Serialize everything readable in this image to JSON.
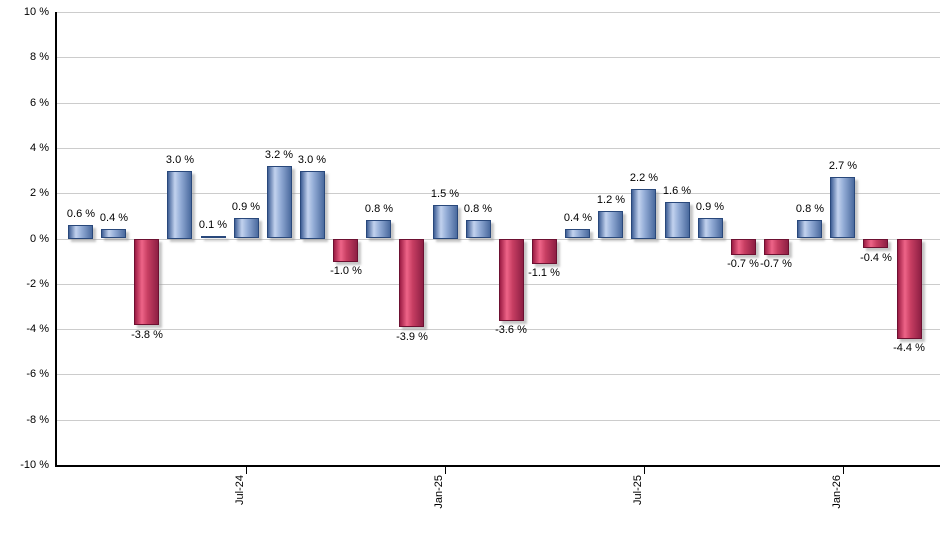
{
  "chart_data": {
    "type": "bar",
    "title": "",
    "xlabel": "",
    "ylabel": "",
    "unit_suffix": " %",
    "ylim": [
      -10,
      10
    ],
    "grid": true,
    "legend": false,
    "y_ticks_percent": [
      10,
      8,
      6,
      4,
      2,
      0,
      -2,
      -4,
      -6,
      -8,
      -10
    ],
    "values": [
      0.6,
      0.4,
      -3.8,
      3.0,
      0.1,
      0.9,
      3.2,
      3.0,
      -1.0,
      0.8,
      -3.9,
      1.5,
      0.8,
      -3.6,
      -1.1,
      0.4,
      1.2,
      2.2,
      1.6,
      0.9,
      -0.7,
      -0.7,
      0.8,
      2.7,
      -0.4,
      -4.4
    ],
    "value_labels": [
      "0.6 %",
      "0.4 %",
      "-3.8 %",
      "3.0 %",
      "0.1 %",
      "0.9 %",
      "3.2 %",
      "3.0 %",
      "-1.0 %",
      "0.8 %",
      "-3.9 %",
      "1.5 %",
      "0.8 %",
      "-3.6 %",
      "-1.1 %",
      "0.4 %",
      "1.2 %",
      "2.2 %",
      "1.6 %",
      "0.9 %",
      "-0.7 %",
      "-0.7 %",
      "0.8 %",
      "2.7 %",
      "-0.4 %",
      "-4.4 %"
    ],
    "x_tick_labels": [
      {
        "label": "Jul-24",
        "bar_index": 5
      },
      {
        "label": "Jan-25",
        "bar_index": 11
      },
      {
        "label": "Jul-25",
        "bar_index": 17
      },
      {
        "label": "Jan-26",
        "bar_index": 23
      }
    ],
    "colors": {
      "positive_gradient": [
        "#3f5f96",
        "#c2d2ee",
        "#93acd6",
        "#4a6a9e"
      ],
      "positive_border": "#29487b",
      "negative_gradient": [
        "#9c1c44",
        "#ee6488",
        "#c73e62",
        "#8e1f44"
      ],
      "negative_border": "#6d1031",
      "gridline": "#cccccc",
      "axis": "#000000",
      "label_text": "#000000"
    }
  }
}
